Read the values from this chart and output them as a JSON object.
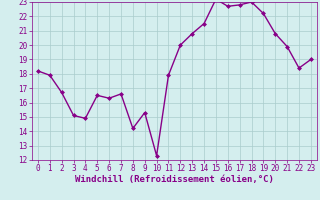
{
  "x": [
    0,
    1,
    2,
    3,
    4,
    5,
    6,
    7,
    8,
    9,
    10,
    11,
    12,
    13,
    14,
    15,
    16,
    17,
    18,
    19,
    20,
    21,
    22,
    23
  ],
  "y": [
    18.2,
    17.9,
    16.7,
    15.1,
    14.9,
    16.5,
    16.3,
    16.6,
    14.2,
    15.3,
    12.3,
    17.9,
    20.0,
    20.8,
    21.5,
    23.2,
    22.7,
    22.8,
    23.0,
    22.2,
    20.8,
    19.9,
    18.4,
    19.0
  ],
  "xlim": [
    -0.5,
    23.5
  ],
  "ylim": [
    12,
    23
  ],
  "yticks": [
    12,
    13,
    14,
    15,
    16,
    17,
    18,
    19,
    20,
    21,
    22,
    23
  ],
  "xticks": [
    0,
    1,
    2,
    3,
    4,
    5,
    6,
    7,
    8,
    9,
    10,
    11,
    12,
    13,
    14,
    15,
    16,
    17,
    18,
    19,
    20,
    21,
    22,
    23
  ],
  "xlabel": "Windchill (Refroidissement éolien,°C)",
  "line_color": "#880088",
  "marker": "D",
  "marker_size": 2,
  "line_width": 1.0,
  "bg_color": "#d4eeee",
  "grid_color": "#aacccc",
  "tick_color": "#880088",
  "label_color": "#880088",
  "tick_fontsize": 5.5,
  "xlabel_fontsize": 6.5
}
